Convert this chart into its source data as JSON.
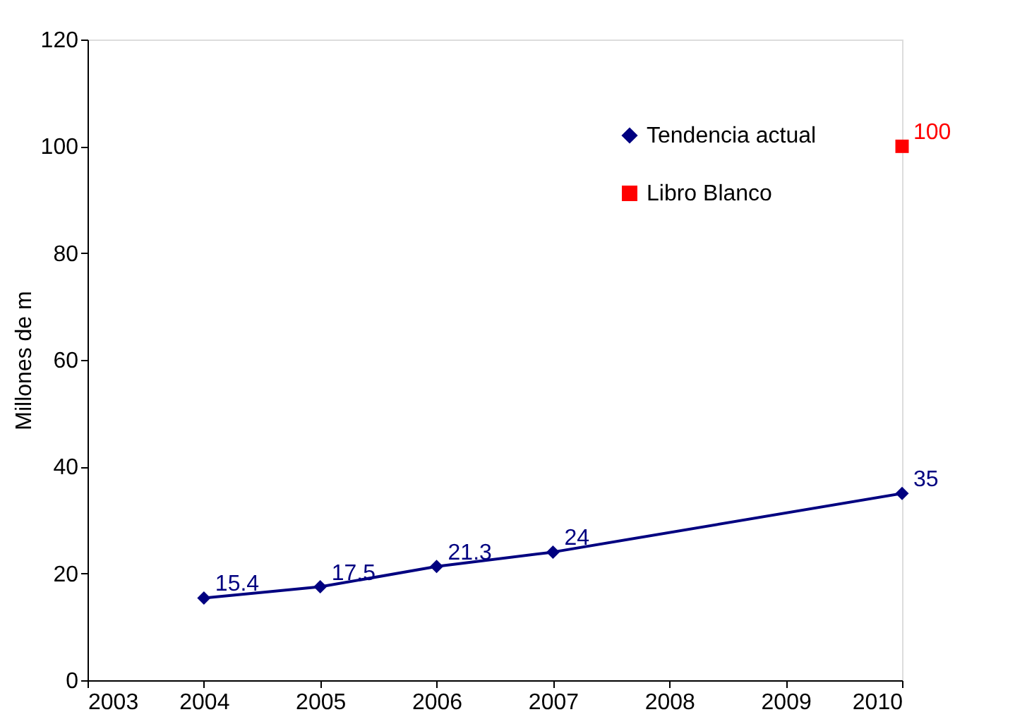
{
  "chart_data": {
    "type": "line",
    "ylabel": "Millones de m",
    "xlim": [
      2003,
      2010
    ],
    "xticks": [
      2003,
      2004,
      2005,
      2006,
      2007,
      2008,
      2009,
      2010
    ],
    "ylim": [
      0,
      120
    ],
    "yticks": [
      0,
      20,
      40,
      60,
      80,
      100,
      120
    ],
    "grid": false,
    "legend": "top right",
    "data_labels": true,
    "series": [
      {
        "name": "Tendencia actual",
        "color": "#000080",
        "marker": "diamond",
        "x": [
          2004,
          2005,
          2006,
          2007,
          2010
        ],
        "values": [
          15.4,
          17.5,
          21.3,
          24,
          35
        ]
      },
      {
        "name": "Libro Blanco",
        "type": "scatter",
        "color": "#ff0000",
        "marker": "square",
        "x": [
          2010
        ],
        "values": [
          100
        ]
      }
    ]
  }
}
